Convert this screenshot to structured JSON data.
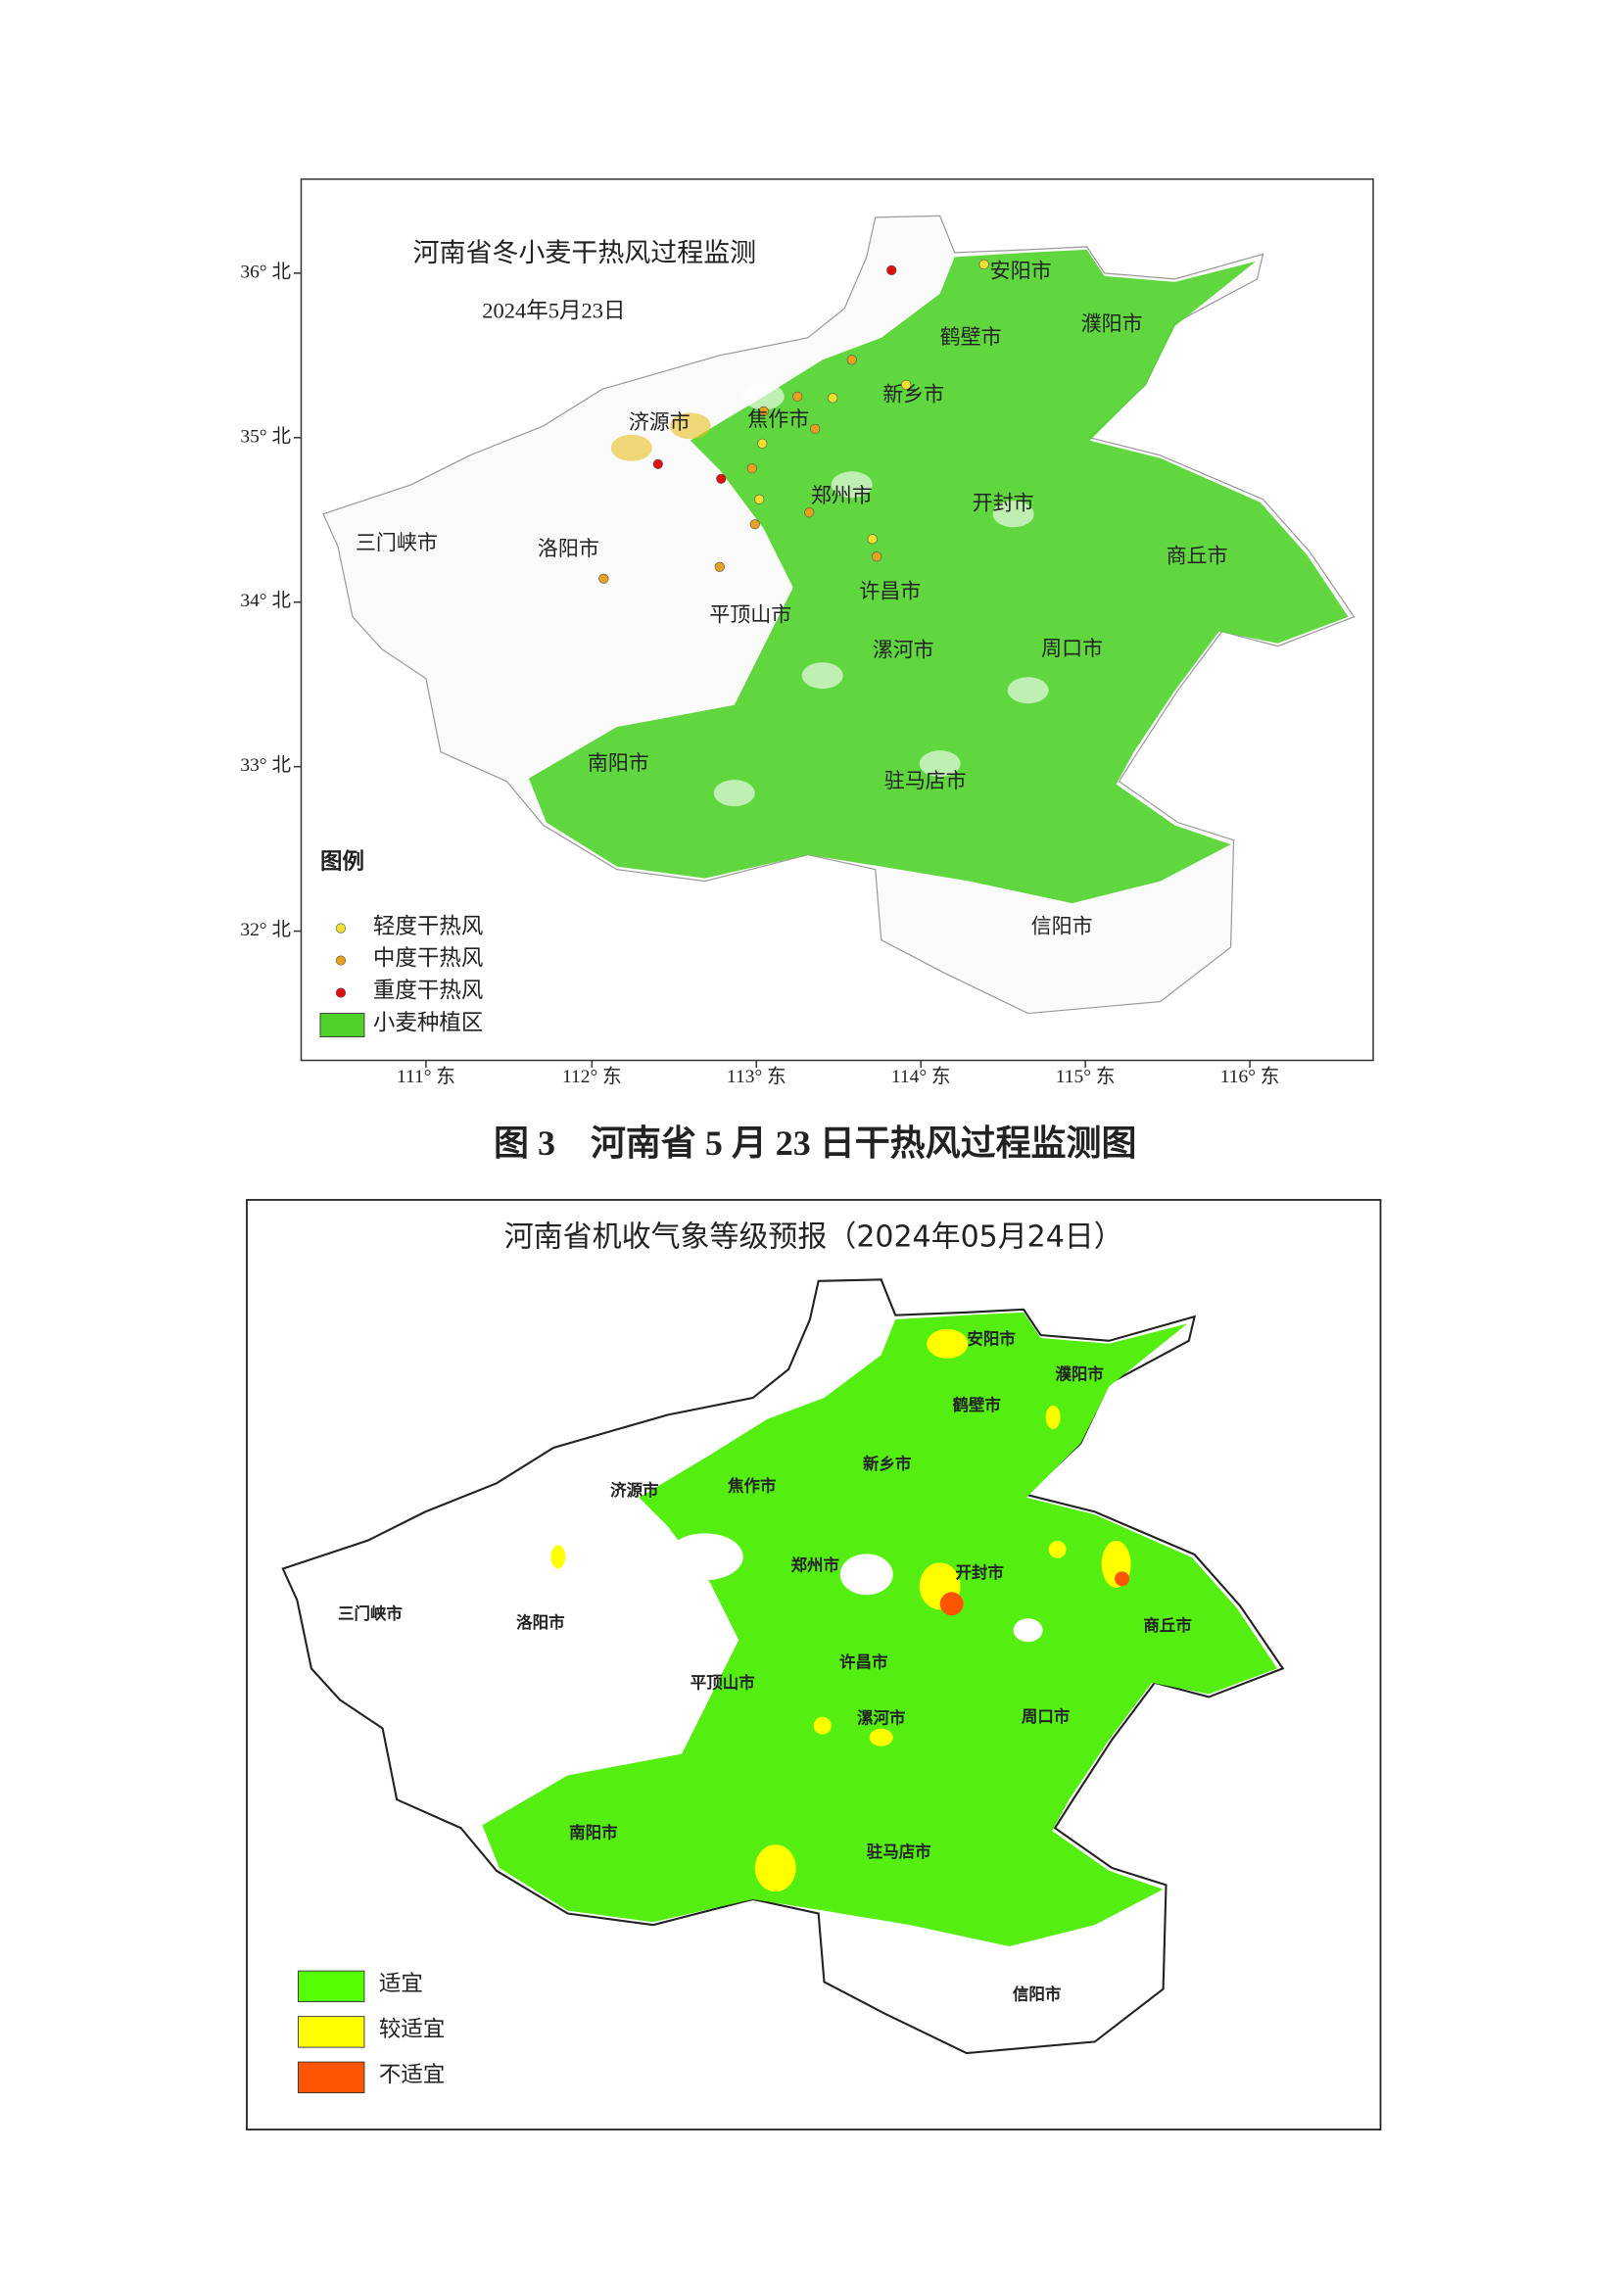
{
  "map1": {
    "title": "河南省冬小麦干热风过程监测",
    "date": "2024年5月23日",
    "lat_labels": [
      "36° 北",
      "35° 北",
      "34° 北",
      "33° 北",
      "32° 北"
    ],
    "lon_labels": [
      "111° 东",
      "112° 东",
      "113° 东",
      "114° 东",
      "115° 东",
      "116° 东"
    ],
    "cities": [
      "安阳市",
      "濮阳市",
      "鹤壁市",
      "新乡市",
      "济源市",
      "焦作市",
      "郑州市",
      "开封市",
      "三门峡市",
      "洛阳市",
      "商丘市",
      "许昌市",
      "平顶山市",
      "漯河市",
      "周口市",
      "南阳市",
      "驻马店市",
      "信阳市"
    ],
    "legend_title": "图例",
    "legend": [
      "轻度干热风",
      "中度干热风",
      "重度干热风",
      "小麦种植区"
    ]
  },
  "caption": "图 3　河南省 5 月 23 日干热风过程监测图",
  "map2": {
    "title": "河南省机收气象等级预报（2024年05月24日）",
    "cities": [
      "安阳市",
      "濮阳市",
      "鹤壁市",
      "新乡市",
      "济源市",
      "焦作市",
      "郑州市",
      "开封市",
      "三门峡市",
      "洛阳市",
      "商丘市",
      "许昌市",
      "平顶山市",
      "漯河市",
      "周口市",
      "南阳市",
      "驻马店市",
      "信阳市"
    ],
    "legend": [
      "适宜",
      "较适宜",
      "不适宜"
    ]
  }
}
